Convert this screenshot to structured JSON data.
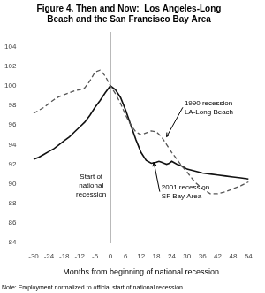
{
  "chart_data": {
    "type": "line",
    "title": "Figure 4. Then and Now:  Los Angeles-Long\nBeach and the San Francisco Bay Area",
    "xlabel": "Months from beginning of national recession",
    "note": "Note: Employment normalized to official start of national recession",
    "xlim": [
      -33,
      57
    ],
    "ylim": [
      84,
      105.5
    ],
    "xticks": [
      -30,
      -24,
      -18,
      -12,
      -6,
      0,
      6,
      12,
      18,
      24,
      30,
      36,
      42,
      48,
      54
    ],
    "yticks": [
      84,
      86,
      88,
      90,
      92,
      94,
      96,
      98,
      100,
      102,
      104
    ],
    "grid": false,
    "vline": 0,
    "annotations": [
      {
        "text": "Start of\nnational\nrecession",
        "x": -7.5,
        "y": 89.8
      },
      {
        "text": "1990 recession\nLA-Long Beach",
        "x": 29,
        "y": 97.8,
        "arrow_x": 22,
        "arrow_y": 94.8
      },
      {
        "text": "2001 recession\nSF Bay Area",
        "x": 20,
        "y": 89.2,
        "arrow_x": 17,
        "arrow_y": 92.2
      }
    ],
    "series": [
      {
        "color": "#555555",
        "line_style": "dashed",
        "x": [
          -30,
          -28,
          -26,
          -24,
          -22,
          -20,
          -18,
          -16,
          -14,
          -12,
          -10,
          -8,
          -6,
          -4,
          -2,
          0,
          2,
          4,
          6,
          8,
          10,
          12,
          14,
          16,
          18,
          20,
          22,
          24,
          26,
          28,
          30,
          33,
          36,
          39,
          42,
          45,
          48,
          51,
          54
        ],
        "values": [
          97.2,
          97.5,
          97.8,
          98.2,
          98.6,
          98.9,
          99.1,
          99.3,
          99.5,
          99.6,
          99.8,
          100.5,
          101.4,
          101.6,
          101.0,
          100.0,
          99.2,
          98.2,
          97.0,
          96.0,
          95.3,
          95.0,
          95.2,
          95.4,
          95.3,
          94.8,
          94.0,
          93.2,
          92.5,
          91.8,
          91.2,
          90.2,
          89.5,
          89.0,
          89.0,
          89.2,
          89.5,
          89.8,
          90.2
        ]
      },
      {
        "color": "#111111",
        "line_style": "solid",
        "x": [
          -30,
          -28,
          -26,
          -24,
          -22,
          -20,
          -18,
          -16,
          -14,
          -12,
          -10,
          -8,
          -6,
          -4,
          -2,
          0,
          2,
          4,
          6,
          8,
          10,
          12,
          14,
          16,
          18,
          19,
          20,
          21,
          22,
          23,
          24,
          26,
          28,
          30,
          33,
          36,
          39,
          42,
          45,
          48,
          51,
          54
        ],
        "values": [
          92.5,
          92.7,
          93.0,
          93.3,
          93.6,
          94.0,
          94.4,
          94.8,
          95.3,
          95.8,
          96.3,
          97.0,
          97.8,
          98.5,
          99.3,
          100.0,
          99.6,
          98.8,
          97.5,
          96.0,
          94.5,
          93.2,
          92.4,
          92.1,
          92.2,
          92.3,
          92.2,
          92.1,
          92.0,
          92.1,
          92.3,
          92.0,
          91.8,
          91.5,
          91.3,
          91.1,
          91.0,
          90.9,
          90.8,
          90.7,
          90.6,
          90.5
        ]
      }
    ]
  }
}
